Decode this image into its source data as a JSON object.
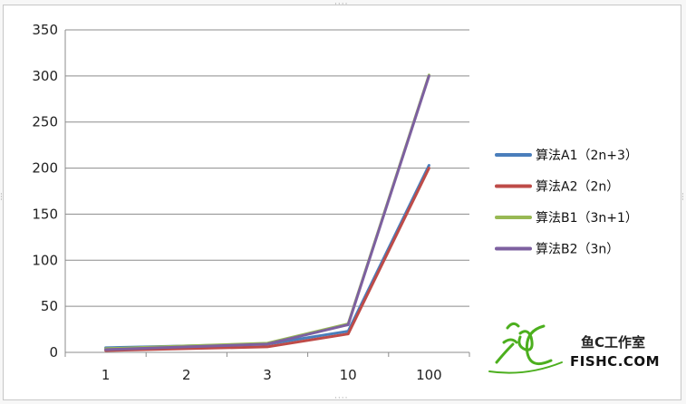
{
  "chart_data": {
    "type": "line",
    "title": "",
    "xlabel": "",
    "ylabel": "",
    "categories": [
      "1",
      "2",
      "3",
      "10",
      "100"
    ],
    "ylim": [
      0,
      350
    ],
    "yticks": [
      0,
      50,
      100,
      150,
      200,
      250,
      300,
      350
    ],
    "grid": "horizontal",
    "legend": "right",
    "series": [
      {
        "name": "算法A1（2n+3）",
        "values": [
          5,
          7,
          9,
          23,
          203
        ],
        "color": "#4a7ebb"
      },
      {
        "name": "算法A2（2n）",
        "values": [
          2,
          4,
          6,
          20,
          200
        ],
        "color": "#be4b48"
      },
      {
        "name": "算法B1（3n+1）",
        "values": [
          4,
          7,
          10,
          31,
          301
        ],
        "color": "#98b954"
      },
      {
        "name": "算法B2（3n）",
        "values": [
          3,
          6,
          9,
          30,
          300
        ],
        "color": "#7d60a0"
      }
    ]
  },
  "watermark": {
    "logo_text": "鱼C工作室",
    "site": "FISHC.COM",
    "colors": {
      "logo_green": "#4caf1e"
    }
  }
}
